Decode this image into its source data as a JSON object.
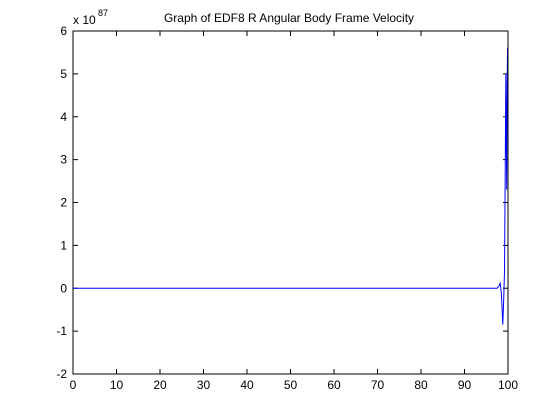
{
  "chart_data": {
    "type": "line",
    "title": "Graph of EDF8 R Angular Body Frame Velocity",
    "xlabel": "",
    "ylabel": "",
    "y_multiplier_base": "x 10",
    "y_multiplier_exponent": "87",
    "xlim": [
      0,
      100
    ],
    "ylim": [
      -2,
      6
    ],
    "x_ticks": [
      "0",
      "10",
      "20",
      "30",
      "40",
      "50",
      "60",
      "70",
      "80",
      "90",
      "100"
    ],
    "y_ticks": [
      "-2",
      "-1",
      "0",
      "1",
      "2",
      "3",
      "4",
      "5",
      "6"
    ],
    "grid": false,
    "legend": "none",
    "series": [
      {
        "color": "#0000ff",
        "x": [
          0,
          97.5,
          97.9,
          98.2,
          98.5,
          98.8,
          99.0,
          99.2,
          99.35,
          99.5,
          99.6,
          99.7,
          99.8,
          99.9,
          100
        ],
        "y": [
          0,
          0,
          0.05,
          0.12,
          -0.15,
          -0.85,
          -0.3,
          0.4,
          2.6,
          5.0,
          3.5,
          2.3,
          4.8,
          5.6,
          5.6
        ]
      }
    ]
  }
}
